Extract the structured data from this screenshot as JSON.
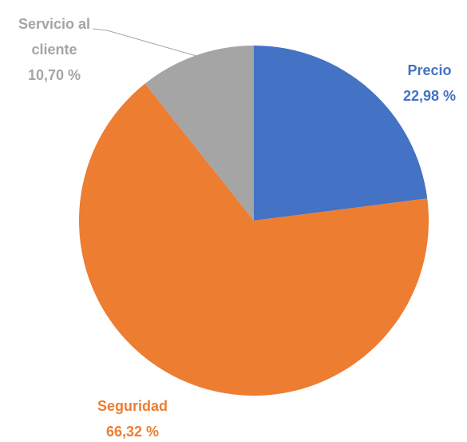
{
  "chart_data": {
    "type": "pie",
    "categories": [
      "Precio",
      "Seguridad",
      "Servicio al cliente"
    ],
    "values": [
      22.98,
      66.32,
      10.7
    ],
    "value_labels": [
      "22,98 %",
      "66,32 %",
      "10,70 %"
    ],
    "colors": [
      "#4472c4",
      "#ed7d31",
      "#a5a5a5"
    ]
  }
}
